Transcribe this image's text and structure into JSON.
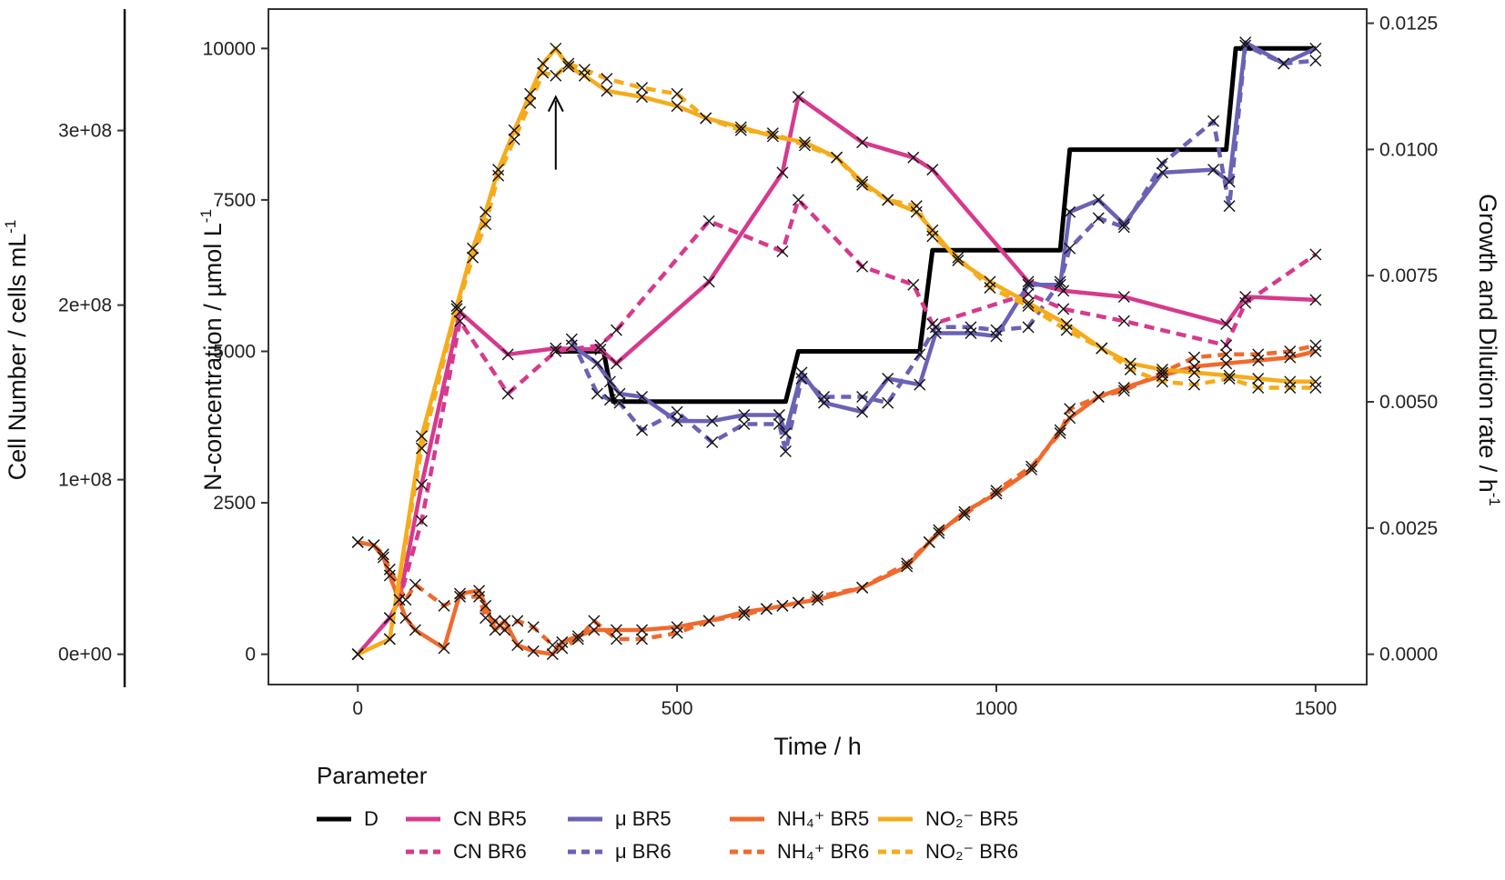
{
  "chart_data": {
    "type": "line",
    "xlabel": "Time / h",
    "ylabel_left": "N-concentration / µmol L",
    "ylabel_left_sup": "-1",
    "ylabel_cells": "Cell Number / cells mL",
    "ylabel_cells_sup": "-1",
    "ylabel_right": "Growth and Dilution rate / h",
    "ylabel_right_sup": "-1",
    "xlim": [
      -140,
      1580
    ],
    "ylim": [
      -500,
      10650
    ],
    "x_ticks": [
      "0",
      "500",
      "1000",
      "1500"
    ],
    "x_tick_values": [
      0,
      500,
      1000,
      1500
    ],
    "y_ticks": [
      "0",
      "2500",
      "5000",
      "7500",
      "10000"
    ],
    "y_tick_values": [
      0,
      2500,
      5000,
      7500,
      10000
    ],
    "cell_ticks": [
      "0e+00",
      "1e+08",
      "2e+08",
      "3e+08"
    ],
    "cell_tick_values": [
      0,
      100000000,
      200000000,
      300000000
    ],
    "cell_scale_per_unit": 34700,
    "right_ticks": [
      "0.0000",
      "0.0025",
      "0.0050",
      "0.0075",
      "0.0100",
      "0.0125"
    ],
    "right_tick_values": [
      0,
      0.0025,
      0.005,
      0.0075,
      0.01,
      0.0125
    ],
    "right_scale_per_unit": 1.2e-06,
    "legend_title": "Parameter",
    "annotation": "arrow pointing to peak near 310 h",
    "annotation_x": 310,
    "annotation_y_from": 8000,
    "annotation_y_to": 9200,
    "series": [
      {
        "name": "D",
        "label": "D",
        "color": "#000000",
        "dash": "solid",
        "x": [
          310,
          385,
          400,
          670,
          690,
          880,
          900,
          1100,
          1115,
          1360,
          1375,
          1500
        ],
        "y": [
          5000,
          5000,
          4170,
          4170,
          5000,
          5000,
          6670,
          6670,
          8330,
          8330,
          10000,
          10000
        ],
        "markers": false
      },
      {
        "name": "CN BR5",
        "label": "CN BR5",
        "color": "#d63a8d",
        "dash": "solid",
        "x": [
          0,
          50,
          65,
          100,
          160,
          235,
          310,
          380,
          405,
          550,
          665,
          690,
          790,
          870,
          900,
          1050,
          1105,
          1200,
          1360,
          1390,
          1500
        ],
        "y": [
          0,
          600,
          900,
          2800,
          5650,
          4950,
          5050,
          5030,
          4800,
          6150,
          7950,
          9200,
          8450,
          8200,
          8000,
          6150,
          6000,
          5900,
          5450,
          5900,
          5850
        ],
        "markers": true
      },
      {
        "name": "CN BR6",
        "label": "CN BR6",
        "color": "#d63a8d",
        "dash": "dash",
        "x": [
          0,
          50,
          65,
          100,
          160,
          235,
          310,
          380,
          405,
          550,
          665,
          690,
          790,
          870,
          900,
          1050,
          1105,
          1200,
          1360,
          1390,
          1500
        ],
        "y": [
          0,
          600,
          900,
          2200,
          5500,
          4300,
          5000,
          5100,
          5350,
          7150,
          6650,
          7500,
          6400,
          6100,
          5450,
          5950,
          5700,
          5500,
          5100,
          5800,
          6600
        ],
        "markers": true
      },
      {
        "name": "mu BR5",
        "label": "μ BR5",
        "color": "#6a62b5",
        "dash": "solid",
        "x": [
          335,
          375,
          395,
          410,
          445,
          500,
          555,
          605,
          660,
          670,
          695,
          730,
          790,
          830,
          880,
          905,
          960,
          1000,
          1050,
          1100,
          1115,
          1160,
          1200,
          1260,
          1340,
          1365,
          1390,
          1450,
          1500
        ],
        "y": [
          5100,
          4800,
          4500,
          4300,
          4250,
          3850,
          3850,
          3950,
          3950,
          3650,
          4650,
          4150,
          4000,
          4550,
          4450,
          5300,
          5300,
          5250,
          6100,
          6100,
          7300,
          7500,
          7100,
          7950,
          8000,
          7800,
          10100,
          9750,
          10000
        ],
        "markers": true
      },
      {
        "name": "mu BR6",
        "label": "μ BR6",
        "color": "#6a62b5",
        "dash": "dash",
        "x": [
          335,
          375,
          395,
          410,
          445,
          500,
          555,
          605,
          660,
          670,
          695,
          730,
          790,
          830,
          880,
          905,
          960,
          1000,
          1050,
          1100,
          1115,
          1160,
          1200,
          1260,
          1340,
          1365,
          1390,
          1450,
          1500
        ],
        "y": [
          5200,
          4300,
          4200,
          4150,
          3700,
          4000,
          3500,
          3800,
          3800,
          3350,
          4550,
          4250,
          4250,
          4150,
          4950,
          5400,
          5400,
          5350,
          5400,
          6150,
          6700,
          7200,
          7050,
          8100,
          8800,
          7400,
          10050,
          9750,
          9800
        ],
        "markers": true
      },
      {
        "name": "NH4 BR5",
        "label": "NH₄⁺ BR5",
        "color": "#ef6a2d",
        "dash": "solid",
        "x": [
          0,
          25,
          40,
          50,
          75,
          90,
          135,
          160,
          190,
          200,
          215,
          230,
          250,
          275,
          305,
          320,
          345,
          370,
          405,
          445,
          500,
          550,
          605,
          640,
          665,
          690,
          720,
          790,
          860,
          895,
          910,
          950,
          1000,
          1055,
          1100,
          1115,
          1160,
          1200,
          1260,
          1310,
          1360,
          1410,
          1460,
          1500
        ],
        "y": [
          1850,
          1800,
          1600,
          1300,
          600,
          400,
          100,
          1000,
          1050,
          800,
          400,
          550,
          150,
          50,
          0,
          200,
          300,
          400,
          400,
          400,
          450,
          550,
          700,
          750,
          800,
          850,
          900,
          1100,
          1450,
          1850,
          2000,
          2350,
          2650,
          3050,
          3700,
          3900,
          4250,
          4400,
          4600,
          4750,
          4800,
          4850,
          4900,
          5000
        ],
        "markers": true
      },
      {
        "name": "NH4 BR6",
        "label": "NH₄⁺ BR6",
        "color": "#ef6a2d",
        "dash": "dash",
        "x": [
          0,
          25,
          40,
          50,
          75,
          90,
          135,
          160,
          190,
          200,
          215,
          230,
          250,
          275,
          305,
          320,
          345,
          370,
          405,
          445,
          500,
          550,
          605,
          640,
          665,
          690,
          720,
          790,
          860,
          895,
          910,
          950,
          1000,
          1055,
          1100,
          1115,
          1160,
          1200,
          1260,
          1310,
          1360,
          1410,
          1460,
          1500
        ],
        "y": [
          1850,
          1800,
          1650,
          1400,
          900,
          1150,
          800,
          950,
          950,
          600,
          550,
          400,
          550,
          450,
          150,
          100,
          250,
          550,
          250,
          250,
          350,
          550,
          650,
          750,
          800,
          850,
          950,
          1100,
          1500,
          1850,
          2050,
          2300,
          2700,
          3100,
          3650,
          4050,
          4250,
          4350,
          4650,
          4900,
          4950,
          4950,
          5000,
          5100
        ],
        "markers": true
      },
      {
        "name": "NO2 BR5",
        "label": "NO₂⁻ BR5",
        "color": "#f5ac1c",
        "dash": "solid",
        "x": [
          0,
          50,
          100,
          155,
          180,
          200,
          220,
          245,
          270,
          290,
          310,
          330,
          355,
          390,
          445,
          500,
          545,
          600,
          650,
          700,
          750,
          790,
          830,
          875,
          900,
          940,
          990,
          1050,
          1110,
          1165,
          1210,
          1260,
          1310,
          1365,
          1410,
          1460,
          1500
        ],
        "y": [
          0,
          250,
          3600,
          5750,
          6700,
          7300,
          8000,
          8650,
          9250,
          9750,
          10000,
          9700,
          9550,
          9300,
          9200,
          9050,
          8850,
          8700,
          8550,
          8450,
          8200,
          7800,
          7500,
          7300,
          7000,
          6500,
          6150,
          5800,
          5450,
          5050,
          4800,
          4700,
          4650,
          4600,
          4550,
          4500,
          4500
        ],
        "markers": true
      },
      {
        "name": "NO2 BR6",
        "label": "NO₂⁻ BR6",
        "color": "#f5ac1c",
        "dash": "dash",
        "x": [
          0,
          50,
          100,
          155,
          180,
          200,
          220,
          245,
          270,
          290,
          310,
          330,
          355,
          390,
          445,
          500,
          545,
          600,
          650,
          700,
          750,
          790,
          830,
          875,
          900,
          940,
          990,
          1050,
          1110,
          1165,
          1210,
          1260,
          1310,
          1365,
          1410,
          1460,
          1500
        ],
        "y": [
          0,
          250,
          3400,
          5700,
          6550,
          7100,
          7900,
          8500,
          9100,
          9600,
          9550,
          9750,
          9650,
          9500,
          9350,
          9250,
          8850,
          8650,
          8600,
          8400,
          8200,
          7750,
          7500,
          7400,
          6900,
          6550,
          6050,
          5750,
          5350,
          5050,
          4700,
          4500,
          4450,
          4550,
          4400,
          4400,
          4400
        ],
        "markers": true
      }
    ]
  }
}
